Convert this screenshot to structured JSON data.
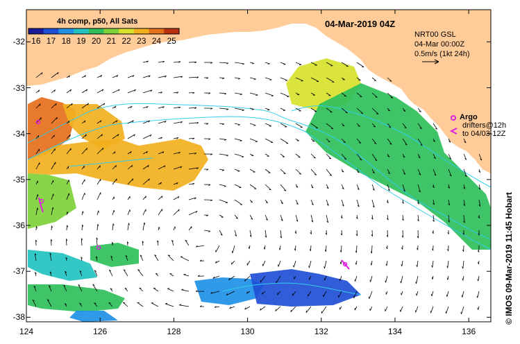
{
  "title": "04-Mar-2019 04Z",
  "colorbar": {
    "title": "4h comp, p50, All Sats",
    "ticks": [
      "16",
      "17",
      "18",
      "19",
      "20",
      "21",
      "22",
      "23",
      "24",
      "25"
    ],
    "range": [
      15.5,
      25.5
    ],
    "colors": [
      "#1a1a9c",
      "#1f4fd6",
      "#1e90e6",
      "#22c2c0",
      "#2fbf5a",
      "#7fd13a",
      "#d7e22c",
      "#f2b01e",
      "#e56f1a",
      "#b8300f"
    ]
  },
  "legend": {
    "line1": "NRT00 GSL",
    "line2": "04-Mar 00:00Z",
    "line3": "0.5m/s (1kt 24h)"
  },
  "argo": {
    "label": "Argo",
    "drifters_line1": "drifters@12h",
    "drifters_line2": "to 04/03-12Z",
    "color": "#e020e0"
  },
  "credit": "© IMOS 09-Mar-2019 11:45 Hobart",
  "axes": {
    "x_ticks": [
      "124",
      "126",
      "128",
      "130",
      "132",
      "134",
      "136"
    ],
    "y_ticks": [
      "-32",
      "-33",
      "-34",
      "-35",
      "-36",
      "-37",
      "-38"
    ],
    "x_range": [
      124,
      136.6
    ],
    "y_range": [
      -38.1,
      -31.3
    ]
  },
  "colors": {
    "land": "#ffcc99",
    "isobath": "#33ccee",
    "arrow": "#000000"
  }
}
